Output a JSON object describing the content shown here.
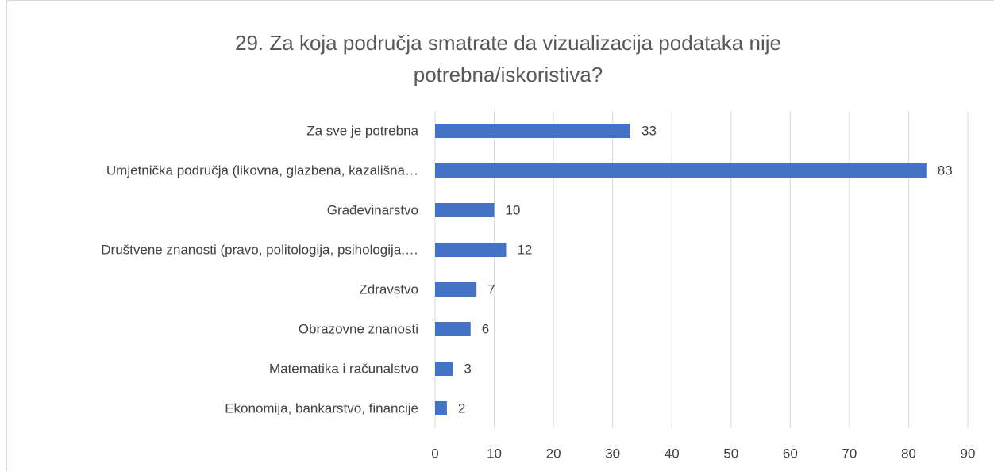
{
  "chart_data": {
    "type": "bar",
    "orientation": "horizontal",
    "title": "29. Za koja područja smatrate da vizualizacija podataka nije potrebna/iskoristiva?",
    "categories": [
      "Za sve je potrebna",
      "Umjetnička područja (likovna, glazbena, kazališna…",
      "Građevinarstvo",
      "Društvene znanosti (pravo, politologija, psihologija,…",
      "Zdravstvo",
      "Obrazovne znanosti",
      "Matematika i računalstvo",
      "Ekonomija, bankarstvo, financije"
    ],
    "values": [
      33,
      83,
      10,
      12,
      7,
      6,
      3,
      2
    ],
    "color": "#4472c4",
    "xlim": [
      0,
      90
    ],
    "xticks": [
      0,
      10,
      20,
      30,
      40,
      50,
      60,
      70,
      80,
      90
    ],
    "grid": true
  }
}
